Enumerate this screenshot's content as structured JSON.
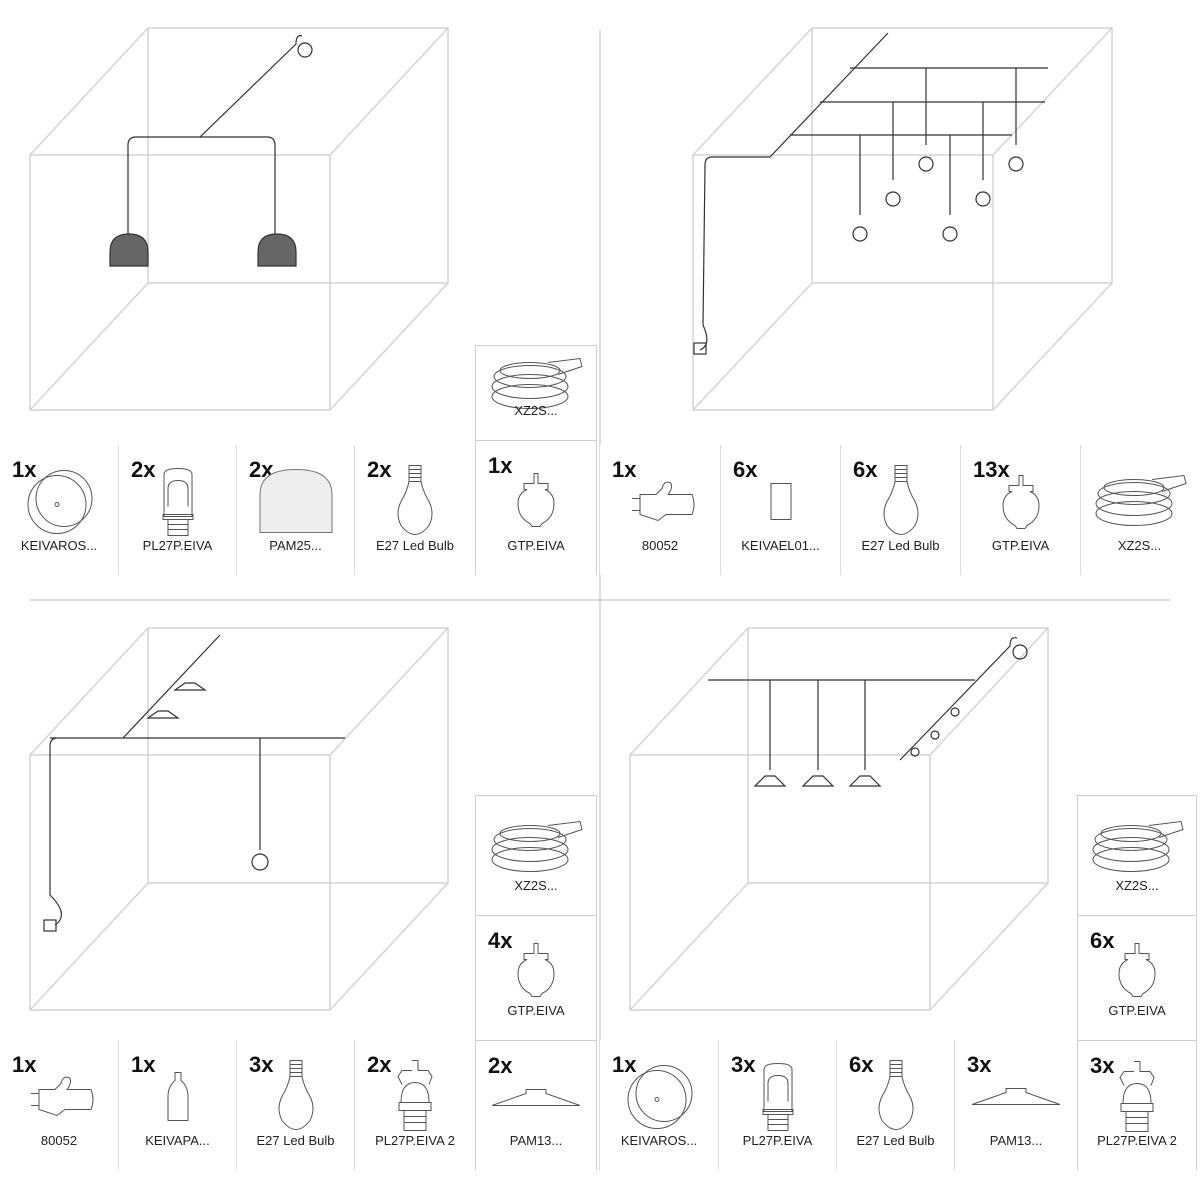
{
  "quadrants": [
    {
      "name": "two-pendant-domes",
      "parts": [
        {
          "qty": "1x",
          "label": "KEIVAROS...",
          "icon": "ceiling-rose-icon"
        },
        {
          "qty": "2x",
          "label": "PL27P.EIVA",
          "icon": "lamp-holder-icon"
        },
        {
          "qty": "2x",
          "label": "PAM25...",
          "icon": "dome-shade-icon"
        },
        {
          "qty": "2x",
          "label": "E27 Led Bulb",
          "icon": "bulb-icon"
        },
        {
          "qty": "",
          "label": "XZ2S...",
          "icon": "cable-coil-icon"
        },
        {
          "qty": "1x",
          "label": "GTP.EIVA",
          "icon": "cord-grip-icon"
        }
      ]
    },
    {
      "name": "six-bulb-grid",
      "parts": [
        {
          "qty": "1x",
          "label": "80052",
          "icon": "plug-icon"
        },
        {
          "qty": "6x",
          "label": "KEIVAEL01...",
          "icon": "socket-cover-icon"
        },
        {
          "qty": "6x",
          "label": "E27 Led Bulb",
          "icon": "bulb-icon"
        },
        {
          "qty": "13x",
          "label": "GTP.EIVA",
          "icon": "cord-grip-icon"
        },
        {
          "qty": "",
          "label": "XZ2S...",
          "icon": "cable-coil-icon"
        }
      ]
    },
    {
      "name": "three-bulb-chain",
      "parts": [
        {
          "qty": "1x",
          "label": "80052",
          "icon": "plug-icon"
        },
        {
          "qty": "1x",
          "label": "KEIVAPA...",
          "icon": "bottle-cover-icon"
        },
        {
          "qty": "3x",
          "label": "E27 Led Bulb",
          "icon": "bulb-icon"
        },
        {
          "qty": "2x",
          "label": "PL27P.EIVA 2",
          "icon": "ring-holder-icon"
        },
        {
          "qty": "",
          "label": "XZ2S...",
          "icon": "cable-coil-icon"
        },
        {
          "qty": "4x",
          "label": "GTP.EIVA",
          "icon": "cord-grip-icon"
        },
        {
          "qty": "2x",
          "label": "PAM13...",
          "icon": "flat-shade-icon"
        }
      ]
    },
    {
      "name": "three-flat-shades",
      "parts": [
        {
          "qty": "1x",
          "label": "KEIVAROS...",
          "icon": "ceiling-rose-icon"
        },
        {
          "qty": "3x",
          "label": "PL27P.EIVA",
          "icon": "lamp-holder-icon"
        },
        {
          "qty": "6x",
          "label": "E27 Led Bulb",
          "icon": "bulb-icon"
        },
        {
          "qty": "3x",
          "label": "PAM13...",
          "icon": "flat-shade-icon"
        },
        {
          "qty": "",
          "label": "XZ2S...",
          "icon": "cable-coil-icon"
        },
        {
          "qty": "6x",
          "label": "GTP.EIVA",
          "icon": "cord-grip-icon"
        },
        {
          "qty": "3x",
          "label": "PL27P.EIVA 2",
          "icon": "ring-holder-icon"
        }
      ]
    }
  ],
  "colors": {
    "cube": "#d4d4d4",
    "wire": "#333333",
    "shade_fill": "#666666",
    "divider": "#bbbbbb"
  }
}
